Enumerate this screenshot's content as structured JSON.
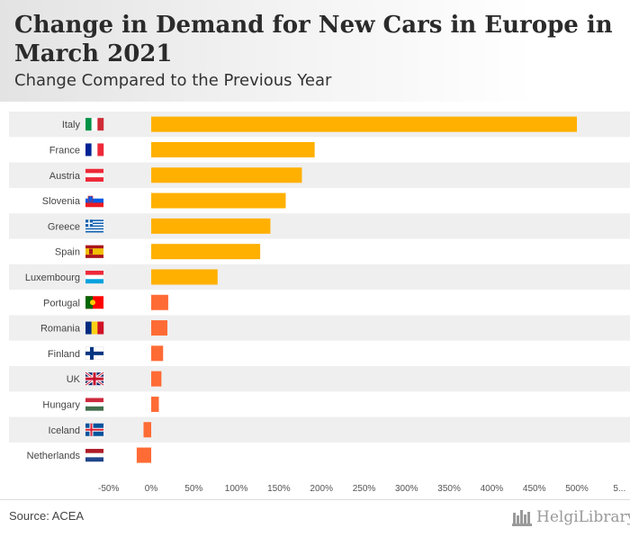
{
  "header": {
    "title": "Change in Demand for New Cars in Europe in March 2021",
    "subtitle": "Change Compared to the Previous Year"
  },
  "chart_data": {
    "type": "bar",
    "orientation": "horizontal",
    "categories": [
      "Italy",
      "France",
      "Austria",
      "Slovenia",
      "Greece",
      "Spain",
      "Luxembourg",
      "Portugal",
      "Romania",
      "Finland",
      "UK",
      "Hungary",
      "Iceland",
      "Netherlands"
    ],
    "values": [
      500,
      192,
      177,
      158,
      140,
      128,
      78,
      20,
      19,
      14,
      12,
      9,
      -9,
      -17
    ],
    "unit": "%",
    "xlim": [
      -50,
      550
    ],
    "xticks": [
      "-50%",
      "0%",
      "50%",
      "100%",
      "150%",
      "200%",
      "250%",
      "300%",
      "350%",
      "400%",
      "450%",
      "500%",
      "5..."
    ],
    "grid": false,
    "legend": "none",
    "colors": {
      "large": "#ffb000",
      "small": "#ff6b35",
      "band": "#efefef"
    },
    "flags": [
      "italy-flag-icon",
      "france-flag-icon",
      "austria-flag-icon",
      "slovenia-flag-icon",
      "greece-flag-icon",
      "spain-flag-icon",
      "luxembourg-flag-icon",
      "portugal-flag-icon",
      "romania-flag-icon",
      "finland-flag-icon",
      "uk-flag-icon",
      "hungary-flag-icon",
      "iceland-flag-icon",
      "netherlands-flag-icon"
    ]
  },
  "footer": {
    "source": "Source: ACEA",
    "logo": "HelgiLibrary"
  }
}
